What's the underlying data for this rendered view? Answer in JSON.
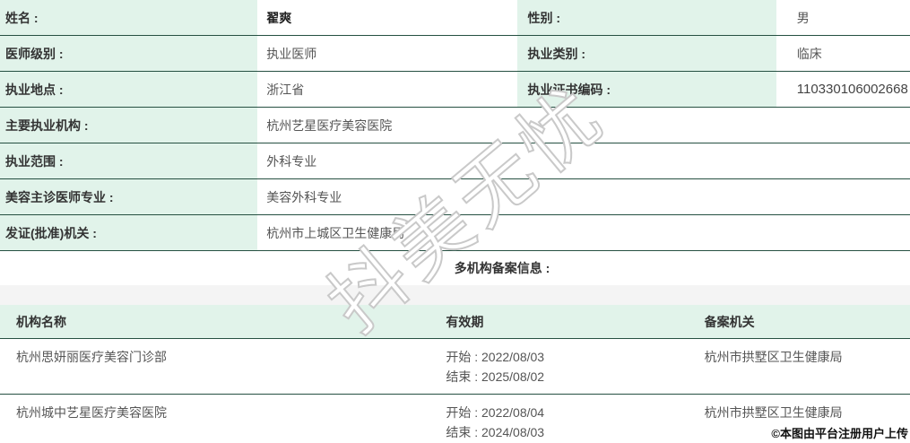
{
  "form": {
    "rows": [
      {
        "label": "姓名 :",
        "value": "翟爽",
        "label2": "性别 :",
        "value2": "男"
      },
      {
        "label": "医师级别 :",
        "value": "执业医师",
        "label2": "执业类别 :",
        "value2": "临床"
      },
      {
        "label": "执业地点 :",
        "value": "浙江省",
        "label2": "执业证书编码 :",
        "value2": "110330106002668"
      },
      {
        "label": "主要执业机构 :",
        "value": "杭州艺星医疗美容医院"
      },
      {
        "label": "执业范围 :",
        "value": "外科专业"
      },
      {
        "label": "美容主诊医师专业 :",
        "value": "美容外科专业"
      },
      {
        "label": "发证(批准)机关 :",
        "value": "杭州市上城区卫生健康局"
      }
    ]
  },
  "section": {
    "title": "多机构备案信息 :"
  },
  "table": {
    "headers": [
      "机构名称",
      "有效期",
      "备案机关"
    ],
    "rows": [
      {
        "name": "杭州思妍丽医疗美容门诊部",
        "start": "开始 : 2022/08/03",
        "end": "结束 : 2025/08/02",
        "authority": "杭州市拱墅区卫生健康局"
      },
      {
        "name": "杭州城中艺星医疗美容医院",
        "start": "开始 : 2022/08/04",
        "end": "结束 : 2024/08/03",
        "authority": "杭州市拱墅区卫生健康局"
      }
    ]
  },
  "watermark": "抖美无忧",
  "copyright": "©本图由平台注册用户上传",
  "colors": {
    "label_bg": "#e1f3ea",
    "divider": "#265042",
    "gap_band": "#f4f4f4",
    "label_text": "#333333",
    "value_text": "#555555"
  }
}
